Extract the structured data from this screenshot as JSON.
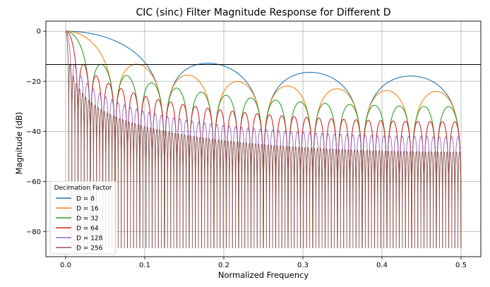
{
  "chart_data": {
    "type": "line",
    "title": "CIC (sinc) Filter Magnitude Response for Different D",
    "xlabel": "Normalized Frequency",
    "ylabel": "Magnitude (dB)",
    "xlim": [
      -0.025,
      0.525
    ],
    "ylim": [
      -90,
      4
    ],
    "x_ticks": [
      0.0,
      0.1,
      0.2,
      0.3,
      0.4,
      0.5
    ],
    "x_tick_labels": [
      "0.0",
      "0.1",
      "0.2",
      "0.3",
      "0.4",
      "0.5"
    ],
    "y_ticks": [
      0,
      -20,
      -40,
      -60,
      -80
    ],
    "y_tick_labels": [
      "0",
      "−20",
      "−40",
      "−60",
      "−80"
    ],
    "grid": true,
    "x_range": [
      0.0,
      0.5
    ],
    "floor_db": -86.5,
    "series": [
      {
        "name": "D = 8",
        "D": 8,
        "color": "#1f77b4"
      },
      {
        "name": "D = 16",
        "D": 16,
        "color": "#ff7f0e"
      },
      {
        "name": "D = 32",
        "D": 32,
        "color": "#2ca02c"
      },
      {
        "name": "D = 64",
        "D": 64,
        "color": "#d62728"
      },
      {
        "name": "D = 128",
        "D": 128,
        "color": "#9467bd"
      },
      {
        "name": "D = 256",
        "D": 256,
        "color": "#8c564b"
      }
    ],
    "reference_line": {
      "y": -13.3,
      "color": "#000000"
    },
    "legend": {
      "title": "Decimation Factor",
      "position": "lower left"
    }
  }
}
